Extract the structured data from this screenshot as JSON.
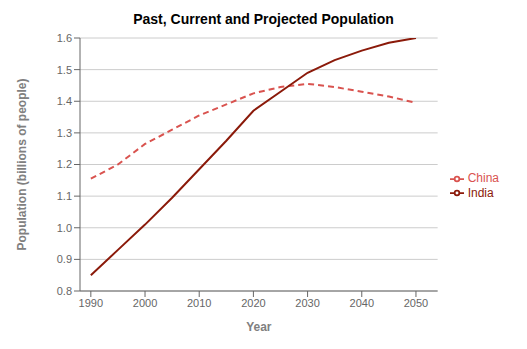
{
  "chart_data": {
    "type": "line",
    "title": "Past, Current and Projected Population",
    "x_label": "Year",
    "y_label": "Population (billions of people)",
    "x": [
      1990,
      1995,
      2000,
      2005,
      2010,
      2015,
      2020,
      2025,
      2030,
      2035,
      2040,
      2045,
      2050
    ],
    "series": [
      {
        "name": "China",
        "color": "#d9534f",
        "line_style": "dashed",
        "values": [
          1.155,
          1.2,
          1.265,
          1.31,
          1.355,
          1.39,
          1.425,
          1.445,
          1.455,
          1.445,
          1.43,
          1.415,
          1.395
        ]
      },
      {
        "name": "India",
        "color": "#8b1a0a",
        "line_style": "solid",
        "values": [
          0.85,
          0.93,
          1.01,
          1.095,
          1.185,
          1.275,
          1.37,
          1.43,
          1.49,
          1.53,
          1.56,
          1.585,
          1.6
        ]
      }
    ],
    "xlim": [
      1988,
      2054
    ],
    "ylim": [
      0.8,
      1.6
    ],
    "xticks": [
      1990,
      2000,
      2010,
      2020,
      2030,
      2040,
      2050
    ],
    "yticks": [
      0.8,
      0.9,
      {
        "value": 1.0,
        "label": "1.0"
      },
      1.1,
      1.2,
      1.3,
      1.4,
      1.5,
      1.6
    ],
    "grid": "y",
    "legend": "right"
  }
}
